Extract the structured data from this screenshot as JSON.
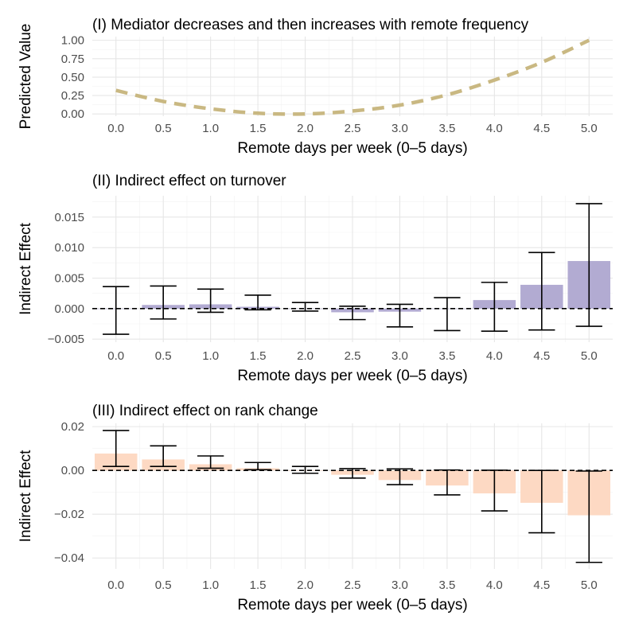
{
  "chart_data": [
    {
      "id": "panel1",
      "type": "line",
      "title": "(I) Mediator decreases and then increases with remote frequency",
      "xlabel": "Remote days per week (0–5 days)",
      "ylabel": "Predicted Value",
      "x": [
        0.0,
        0.5,
        1.0,
        1.5,
        2.0,
        2.5,
        3.0,
        3.5,
        4.0,
        4.5,
        5.0
      ],
      "y": [
        0.32,
        0.17,
        0.07,
        0.01,
        0.0,
        0.04,
        0.12,
        0.26,
        0.46,
        0.7,
        1.0
      ],
      "xlim": [
        -0.25,
        5.25
      ],
      "ylim": [
        -0.03,
        1.05
      ],
      "xticks": [
        "0.0",
        "0.5",
        "1.0",
        "1.5",
        "2.0",
        "2.5",
        "3.0",
        "3.5",
        "4.0",
        "4.5",
        "5.0"
      ],
      "yticks": [
        0.0,
        0.25,
        0.5,
        0.75,
        1.0
      ],
      "ytick_labels": [
        "0.00",
        "0.25",
        "0.50",
        "0.75",
        "1.00"
      ],
      "line_color": "#c9b882",
      "line_style": "dashed"
    },
    {
      "id": "panel2",
      "type": "bar",
      "title": "(II) Indirect effect on turnover",
      "xlabel": "Remote days per week (0–5 days)",
      "ylabel": "Indirect Effect",
      "categories": [
        "0.0",
        "0.5",
        "1.0",
        "1.5",
        "2.0",
        "2.5",
        "3.0",
        "3.5",
        "4.0",
        "4.5",
        "5.0"
      ],
      "values": [
        0.0,
        0.0006,
        0.0007,
        0.0003,
        0.0,
        -0.0006,
        -0.0005,
        0.0,
        0.0014,
        0.0039,
        0.0078
      ],
      "ci_low": [
        -0.0042,
        -0.0017,
        -0.0006,
        -0.0002,
        -0.0004,
        -0.0018,
        -0.003,
        -0.0036,
        -0.0037,
        -0.0035,
        -0.0029
      ],
      "ci_high": [
        0.0036,
        0.0037,
        0.0032,
        0.0022,
        0.001,
        0.0004,
        0.0007,
        0.0018,
        0.0043,
        0.0092,
        0.0172
      ],
      "ylim": [
        -0.0055,
        0.0185
      ],
      "yticks": [
        -0.005,
        0.0,
        0.005,
        0.01,
        0.015
      ],
      "ytick_labels": [
        "−0.005",
        "0.000",
        "0.005",
        "0.010",
        "0.015"
      ],
      "bar_color": "#b2abd2",
      "reference_line": 0
    },
    {
      "id": "panel3",
      "type": "bar",
      "title": "(III) Indirect effect on rank change",
      "xlabel": "Remote days per week (0–5 days)",
      "ylabel": "Indirect Effect",
      "categories": [
        "0.0",
        "0.5",
        "1.0",
        "1.5",
        "2.0",
        "2.5",
        "3.0",
        "3.5",
        "4.0",
        "4.5",
        "5.0"
      ],
      "values": [
        0.0077,
        0.005,
        0.0028,
        0.001,
        0.0,
        -0.002,
        -0.0044,
        -0.0069,
        -0.0105,
        -0.0148,
        -0.0205
      ],
      "ci_low": [
        0.0018,
        0.0018,
        0.001,
        0.0003,
        -0.0013,
        -0.0035,
        -0.0065,
        -0.0112,
        -0.0185,
        -0.0285,
        -0.042
      ],
      "ci_high": [
        0.0182,
        0.0112,
        0.0066,
        0.0036,
        0.0018,
        0.0008,
        0.0007,
        0.0002,
        0.0001,
        0.0,
        -0.0003
      ],
      "ylim": [
        -0.045,
        0.0215
      ],
      "yticks": [
        -0.04,
        -0.02,
        0.0,
        0.02
      ],
      "ytick_labels": [
        "−0.04",
        "−0.02",
        "0.00",
        "0.02"
      ],
      "bar_color": "#fdd9c3",
      "reference_line": 0
    }
  ]
}
